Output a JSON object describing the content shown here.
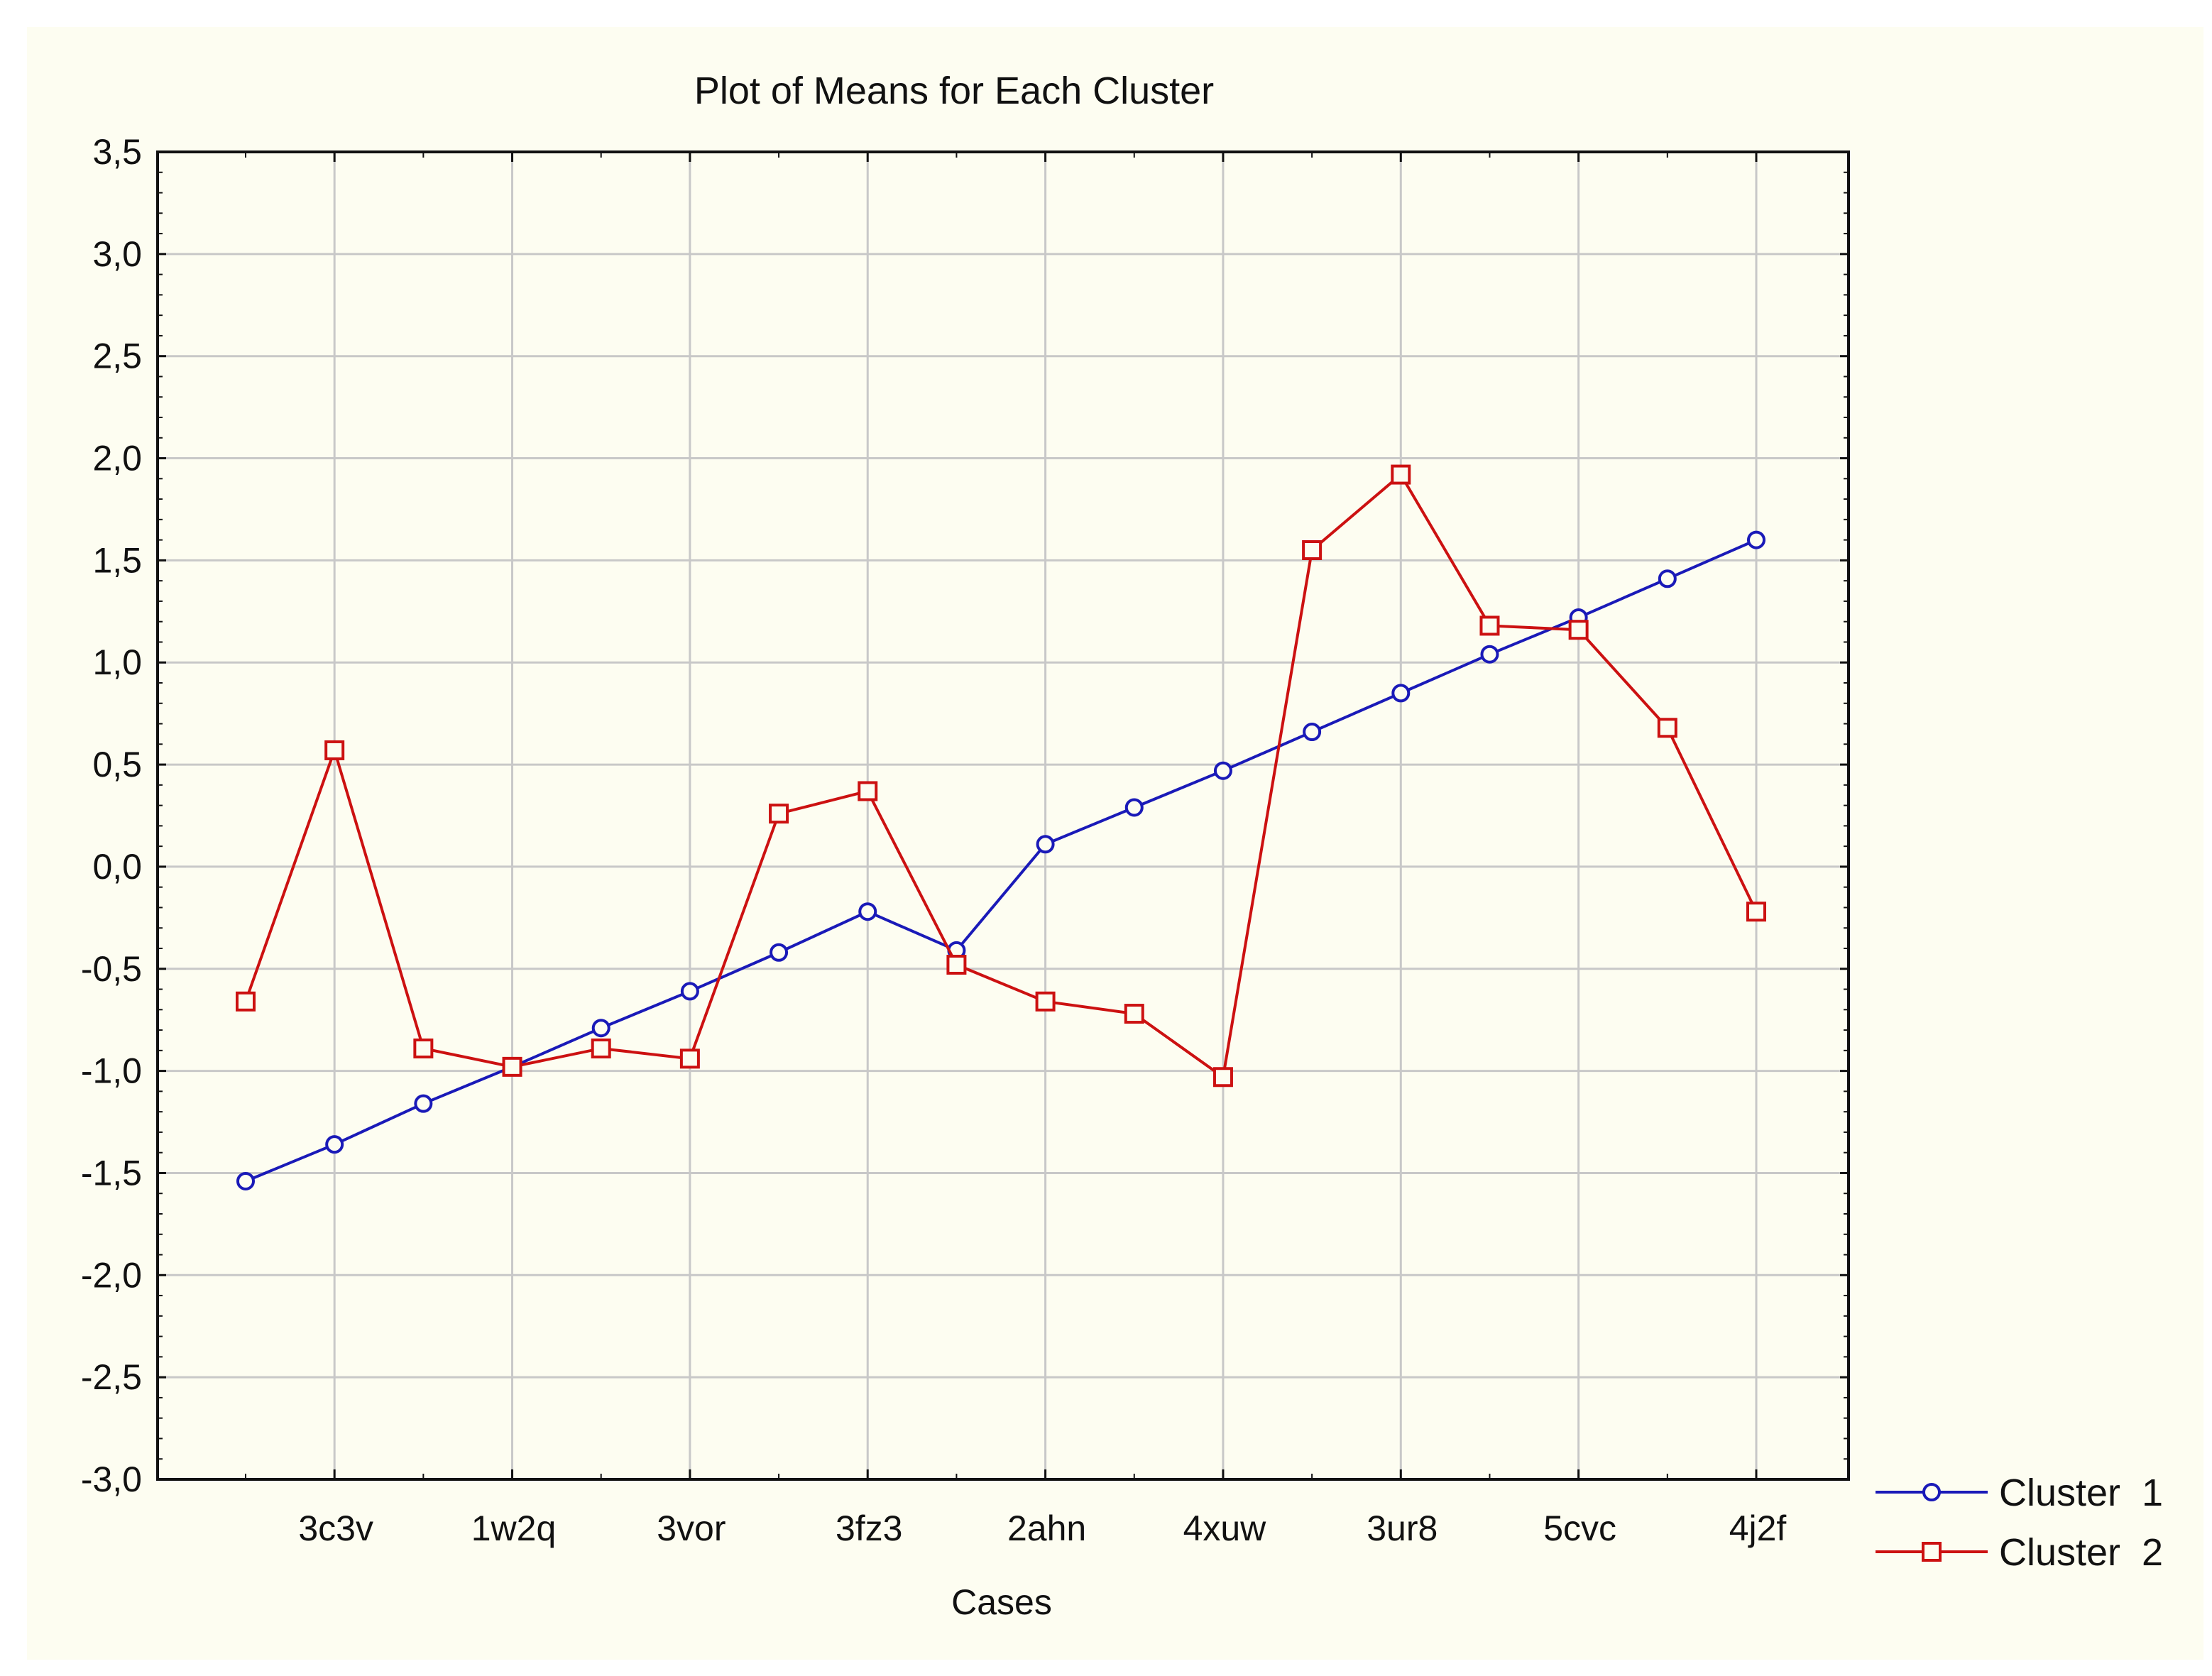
{
  "chart_data": {
    "type": "line",
    "title": "Plot of Means for Each Cluster",
    "xlabel": "Cases",
    "ylabel": "",
    "ylim": [
      -3.0,
      3.5
    ],
    "y_ticks": [
      "3,5",
      "3,0",
      "2,5",
      "2,0",
      "1,5",
      "1,0",
      "0,5",
      "0,0",
      "-0,5",
      "-1,0",
      "-1,5",
      "-2,0",
      "-2,5",
      "-3,0"
    ],
    "y_tick_values": [
      3.5,
      3.0,
      2.5,
      2.0,
      1.5,
      1.0,
      0.5,
      0.0,
      -0.5,
      -1.0,
      -1.5,
      -2.0,
      -2.5,
      -3.0
    ],
    "x_count": 18,
    "x_tick_labels": [
      {
        "index": 2,
        "label": "3c3v"
      },
      {
        "index": 4,
        "label": "1w2q"
      },
      {
        "index": 6,
        "label": "3vor"
      },
      {
        "index": 8,
        "label": "3fz3"
      },
      {
        "index": 10,
        "label": "2ahn"
      },
      {
        "index": 12,
        "label": "4xuw"
      },
      {
        "index": 14,
        "label": "3ur8"
      },
      {
        "index": 16,
        "label": "5cvc"
      },
      {
        "index": 18,
        "label": "4j2f"
      }
    ],
    "grid": true,
    "legend_position": "right-bottom",
    "series": [
      {
        "name": "Cluster  1",
        "color": "#1a1ab8",
        "marker": "circle",
        "values": [
          -1.54,
          -1.36,
          -1.16,
          -0.98,
          -0.79,
          -0.61,
          -0.42,
          -0.22,
          -0.41,
          0.11,
          0.29,
          0.47,
          0.66,
          0.85,
          1.04,
          1.22,
          1.41,
          1.6
        ]
      },
      {
        "name": "Cluster  2",
        "color": "#cc1111",
        "marker": "square",
        "values": [
          -0.66,
          0.57,
          -0.89,
          -0.98,
          -0.89,
          -0.94,
          0.26,
          0.37,
          -0.48,
          -0.66,
          -0.72,
          -1.03,
          1.55,
          1.92,
          1.18,
          1.16,
          0.68,
          -0.22
        ]
      }
    ]
  }
}
